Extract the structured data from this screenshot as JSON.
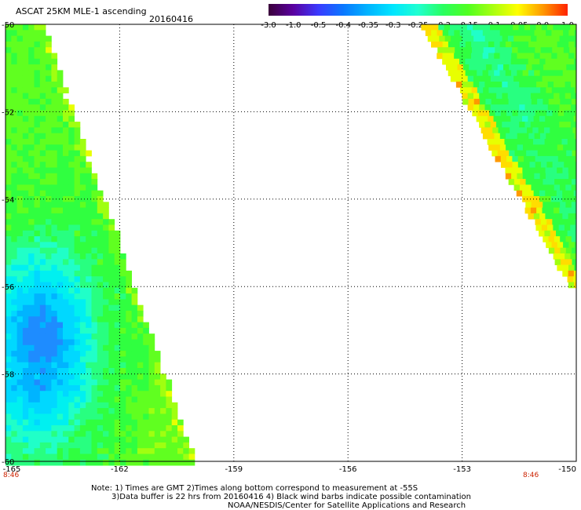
{
  "header": {
    "title": "ASCAT 25KM MLE-1 ascending",
    "date": "20160416"
  },
  "colorbar": {
    "labels": [
      "-3.0",
      "-1.0",
      "-0.5",
      "-0.4",
      "-0.35",
      "-0.3",
      "-0.25",
      "-0.2",
      "-0.15",
      "-0.1",
      "-0.05",
      "0.0",
      "1.0"
    ],
    "colors": [
      "#3a003a",
      "#5a00a0",
      "#3a3aff",
      "#0a78ff",
      "#00b4ff",
      "#00e6ff",
      "#20ffd0",
      "#28ff60",
      "#50ff20",
      "#a8ff10",
      "#ffff00",
      "#ff9900",
      "#ff2200"
    ]
  },
  "axes": {
    "x_ticks": [
      "-165",
      "-162",
      "-159",
      "-156",
      "-153",
      "-150"
    ],
    "y_ticks": [
      "-50",
      "-52",
      "-54",
      "-56",
      "-58",
      "-60"
    ],
    "time_left": "8:46",
    "time_right": "8:46"
  },
  "notes": {
    "line1": "Note: 1) Times are GMT 2)Times along bottom correspond to measurement at -55S",
    "line2": "3)Data buffer is 22 hrs from 20160416 4) Black wind barbs indicate possible contamination",
    "line3": "NOAA/NESDIS/Center for Satellite Applications and Research"
  }
}
